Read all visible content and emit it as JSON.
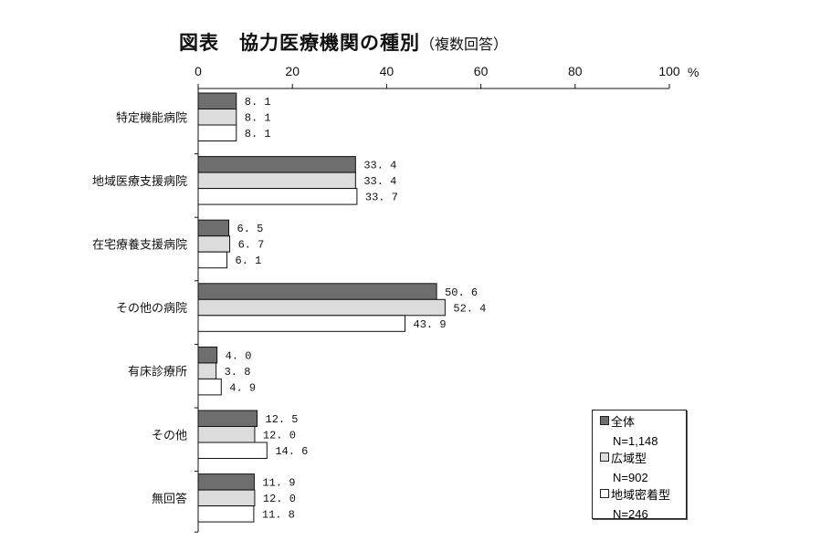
{
  "title": "図表　協力医療機関の種別",
  "subtitle": "（複数回答）",
  "chart_data": {
    "type": "bar",
    "orientation": "horizontal",
    "xlim": [
      0,
      100
    ],
    "xticks": [
      0,
      20,
      40,
      60,
      80,
      100
    ],
    "xunit": "%",
    "grid": false,
    "legend_position": "bottom-right",
    "categories": [
      "特定機能病院",
      "地域医療支援病院",
      "在宅療養支援病院",
      "その他の病院",
      "有床診療所",
      "その他",
      "無回答"
    ],
    "series": [
      {
        "name": "全体",
        "n": "N=1,148",
        "color": "#6e6e6e",
        "values": [
          8.1,
          33.4,
          6.5,
          50.6,
          4.0,
          12.5,
          11.9
        ]
      },
      {
        "name": "広域型",
        "n": "N=902",
        "color": "#dcdcdc",
        "values": [
          8.1,
          33.4,
          6.7,
          52.4,
          3.8,
          12.0,
          12.0
        ]
      },
      {
        "name": "地域密着型",
        "n": "N=246",
        "color": "#ffffff",
        "values": [
          8.1,
          33.7,
          6.1,
          43.9,
          4.9,
          14.6,
          11.8
        ]
      }
    ]
  }
}
